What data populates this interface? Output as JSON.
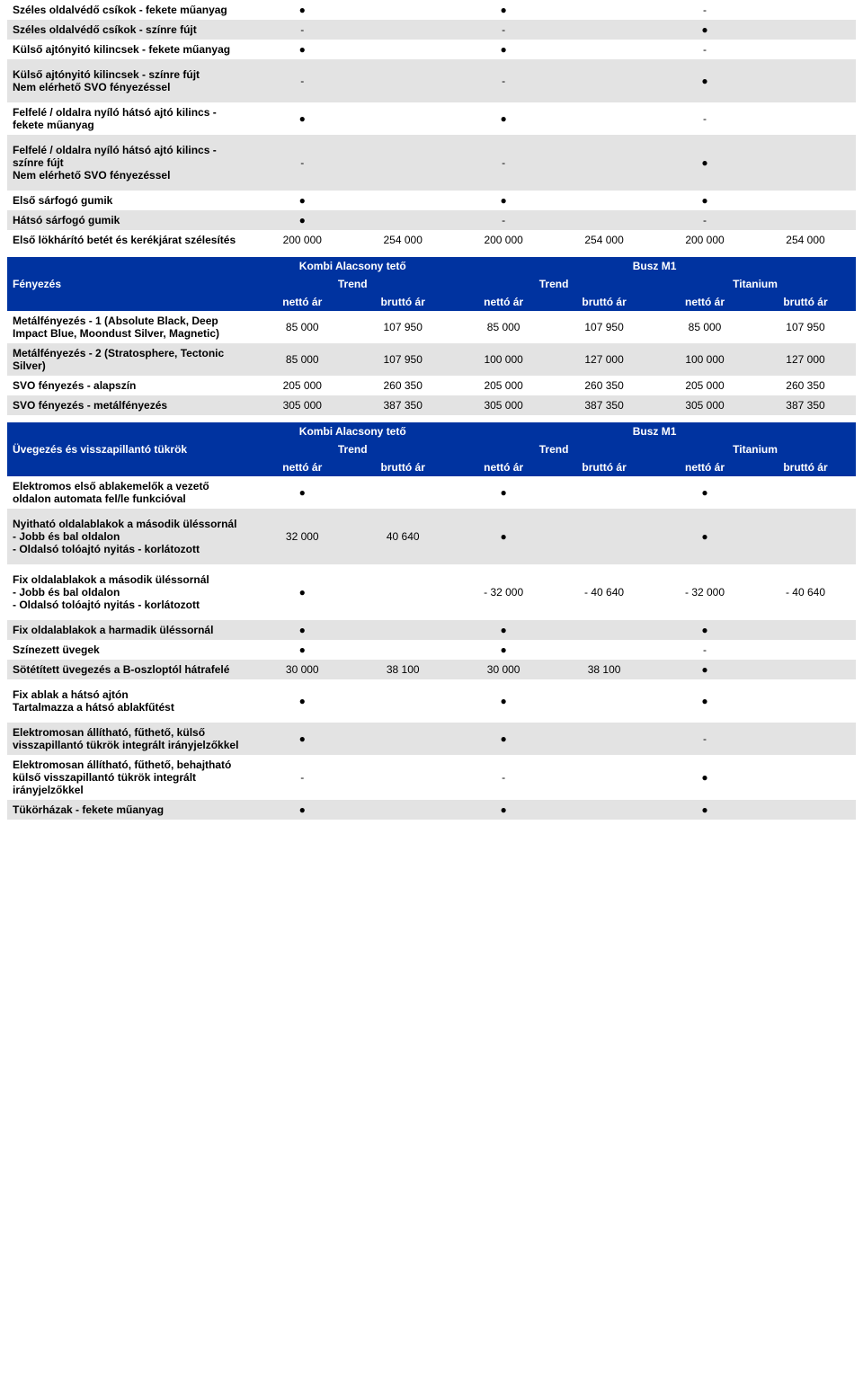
{
  "colors": {
    "headerBg": "#0033a0",
    "headerText": "#ffffff",
    "rowGrey": "#e3e3e3",
    "rowLight": "#ffffff"
  },
  "dot": "●",
  "dash": "-",
  "topRows": [
    {
      "bg": "light",
      "label": "Széles oldalvédő csíkok - fekete műanyag",
      "c": [
        "●",
        "",
        "●",
        "",
        "-",
        ""
      ]
    },
    {
      "bg": "grey",
      "label": "Széles oldalvédő csíkok - színre fújt",
      "c": [
        "-",
        "",
        "-",
        "",
        "●",
        ""
      ]
    },
    {
      "bg": "light",
      "label": "Külső ajtónyitó kilincsek - fekete műanyag",
      "c": [
        "●",
        "",
        "●",
        "",
        "-",
        ""
      ]
    },
    {
      "bg": "grey",
      "label": "Külső ajtónyitó kilincsek - színre fújt\nNem elérhető SVO fényezéssel",
      "c": [
        "-",
        "",
        "-",
        "",
        "●",
        ""
      ]
    },
    {
      "bg": "light",
      "label": "Felfelé / oldalra nyíló hátsó ajtó kilincs - fekete műanyag",
      "c": [
        "●",
        "",
        "●",
        "",
        "-",
        ""
      ]
    },
    {
      "bg": "grey",
      "label": "Felfelé / oldalra nyíló hátsó ajtó kilincs - színre fújt\nNem elérhető SVO fényezéssel",
      "c": [
        "-",
        "",
        "-",
        "",
        "●",
        ""
      ]
    },
    {
      "bg": "light",
      "label": "Első sárfogó gumik",
      "c": [
        "●",
        "",
        "●",
        "",
        "●",
        ""
      ]
    },
    {
      "bg": "grey",
      "label": "Hátsó sárfogó gumik",
      "c": [
        "●",
        "",
        "-",
        "",
        "-",
        ""
      ]
    },
    {
      "bg": "light",
      "label": "Első lökhárító betét és kerékjárat szélesítés",
      "c": [
        "200 000",
        "254 000",
        "200 000",
        "254 000",
        "200 000",
        "254 000"
      ]
    }
  ],
  "paintHeader": {
    "rowLabel": "Fényezés",
    "group1": "Kombi Alacsony tető",
    "group2": "Busz M1",
    "trend": "Trend",
    "titanium": "Titanium",
    "netto": "nettó ár",
    "brutto": "bruttó ár"
  },
  "paintRows": [
    {
      "bg": "light",
      "label": "Metálfényezés - 1  (Absolute Black, Deep Impact Blue, Moondust Silver, Magnetic)",
      "c": [
        "85 000",
        "107 950",
        "85 000",
        "107 950",
        "85 000",
        "107 950"
      ]
    },
    {
      "bg": "grey",
      "label": "Metálfényezés - 2 (Stratosphere, Tectonic Silver)",
      "c": [
        "85 000",
        "107 950",
        "100 000",
        "127 000",
        "100 000",
        "127 000"
      ]
    },
    {
      "bg": "light",
      "label": "SVO fényezés - alapszín",
      "c": [
        "205 000",
        "260 350",
        "205 000",
        "260 350",
        "205 000",
        "260 350"
      ]
    },
    {
      "bg": "grey",
      "label": "SVO fényezés - metálfényezés",
      "c": [
        "305 000",
        "387 350",
        "305 000",
        "387 350",
        "305 000",
        "387 350"
      ]
    }
  ],
  "glassHeader": {
    "rowLabel": "Üvegezés és visszapillantó tükrök",
    "group1": "Kombi Alacsony tető",
    "group2": "Busz M1",
    "trend": "Trend",
    "titanium": "Titanium",
    "netto": "nettó ár",
    "brutto": "bruttó ár"
  },
  "glassRows": [
    {
      "bg": "light",
      "label": "Elektromos első ablakemelők a vezető oldalon automata fel/le funkcióval",
      "c": [
        "●",
        "",
        "●",
        "",
        "●",
        ""
      ]
    },
    {
      "bg": "grey",
      "label": "Nyitható oldalablakok a második üléssornál\n- Jobb és bal oldalon\n- Oldalsó tolóajtó nyitás - korlátozott",
      "c": [
        "32 000",
        "40 640",
        "●",
        "",
        "●",
        ""
      ]
    },
    {
      "bg": "light",
      "label": "Fix oldalablakok a második üléssornál\n- Jobb és bal oldalon\n- Oldalsó tolóajtó nyitás - korlátozott",
      "c": [
        "●",
        "",
        "-  32 000",
        "-  40 640",
        "-  32 000",
        "-  40 640"
      ]
    },
    {
      "bg": "grey",
      "label": "Fix oldalablakok a harmadik üléssornál",
      "c": [
        "●",
        "",
        "●",
        "",
        "●",
        ""
      ]
    },
    {
      "bg": "light",
      "label": "Színezett üvegek",
      "c": [
        "●",
        "",
        "●",
        "",
        "-",
        ""
      ]
    },
    {
      "bg": "grey",
      "label": "Sötétített üvegezés a B-oszloptól hátrafelé",
      "c": [
        "30 000",
        "38 100",
        "30 000",
        "38 100",
        "●",
        ""
      ]
    },
    {
      "bg": "light",
      "label": "Fix ablak a hátsó ajtón\nTartalmazza a hátsó ablakfűtést",
      "c": [
        "●",
        "",
        "●",
        "",
        "●",
        ""
      ]
    },
    {
      "bg": "grey",
      "label": "Elektromosan állítható, fűthető, külső visszapillantó tükrök integrált irányjelzőkkel",
      "c": [
        "●",
        "",
        "●",
        "",
        "-",
        ""
      ]
    },
    {
      "bg": "light",
      "label": "Elektromosan állítható, fűthető, behajtható külső visszapillantó tükrök integrált irányjelzőkkel",
      "c": [
        "-",
        "",
        "-",
        "",
        "●",
        ""
      ]
    },
    {
      "bg": "grey",
      "label": "Tükörházak - fekete műanyag",
      "c": [
        "●",
        "",
        "●",
        "",
        "●",
        ""
      ]
    }
  ]
}
